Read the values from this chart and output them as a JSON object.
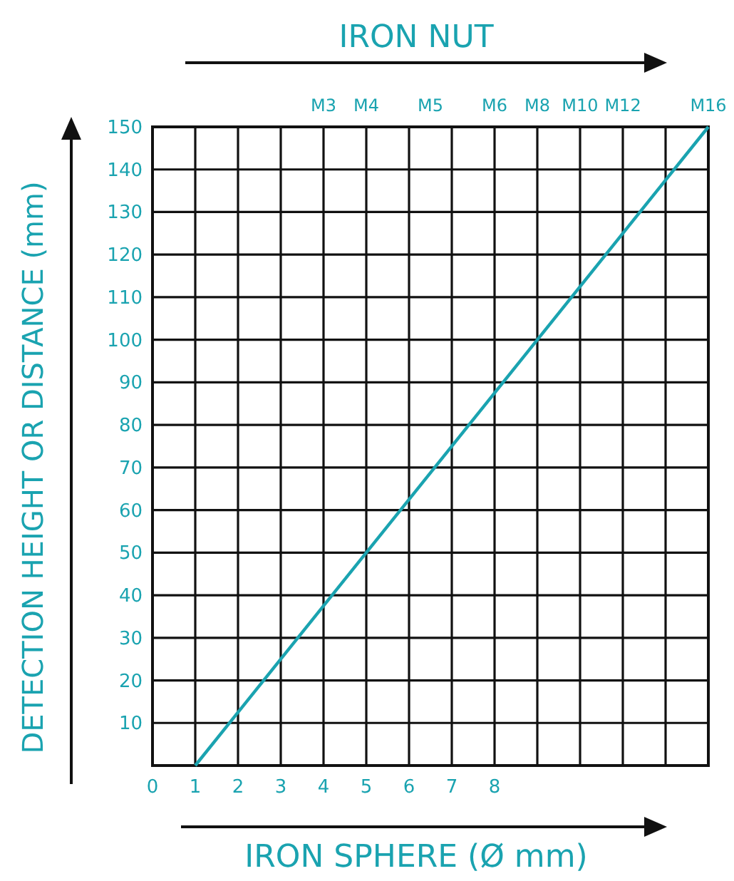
{
  "chart_data": {
    "type": "line",
    "xlabel": "IRON SPHERE (Ø mm)",
    "x2label": "IRON NUT",
    "ylabel": "DETECTION HEIGHT OR DISTANCE (mm)",
    "xlim": [
      0,
      13
    ],
    "xticks": [
      0,
      1,
      2,
      3,
      4,
      5,
      6,
      7,
      8,
      {
        "value": 9,
        "label": null
      },
      {
        "value": 10,
        "label": null
      },
      {
        "value": 11,
        "label": null
      },
      {
        "value": 12,
        "label": null
      },
      {
        "value": 13,
        "label": null
      }
    ],
    "annotations": [
      "M3",
      "M4",
      "M5",
      "M6",
      "M8",
      "M10",
      "M12",
      "M16"
    ],
    "ylim": [
      0,
      150
    ],
    "yticks": [
      10,
      20,
      30,
      40,
      50,
      60,
      70,
      80,
      90,
      100,
      110,
      120,
      130,
      140,
      150
    ],
    "grid": true,
    "series": [
      {
        "color": "#1aa3b0",
        "x": [
          1,
          13
        ],
        "values": [
          0,
          150
        ]
      }
    ]
  }
}
